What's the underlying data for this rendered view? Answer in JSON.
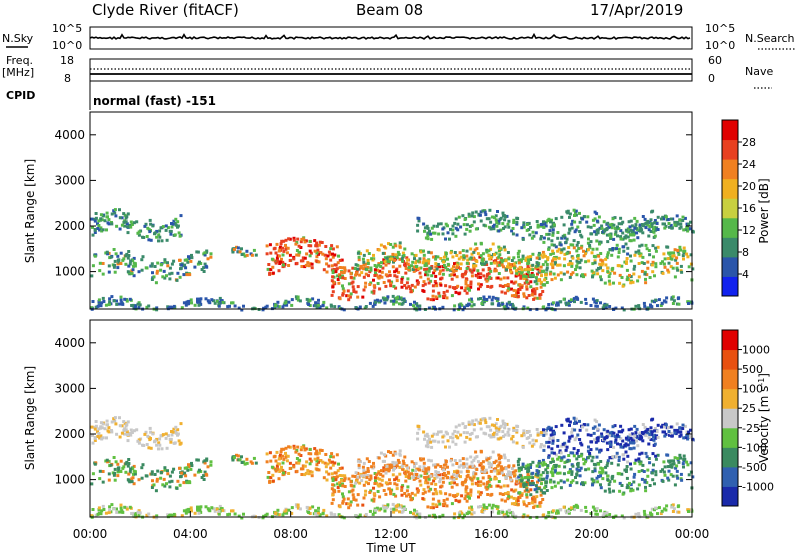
{
  "header": {
    "station": "Clyde River (fitACF)",
    "beam": "Beam 08",
    "date": "17/Apr/2019"
  },
  "top_panels": {
    "nsky_label": "N.Sky",
    "nsky_ticks": [
      "10^5",
      "10^0"
    ],
    "nsearch_label": "N.Search",
    "nsearch_ticks": [
      "10^5",
      "10^0"
    ],
    "freq_label": "Freq.",
    "freq_unit": "[MHz]",
    "freq_ticks": [
      "18",
      "8"
    ],
    "nave_label": "Nave",
    "nave_ticks": [
      "60",
      "0"
    ],
    "cpid_label": "CPID",
    "cpid_text": "normal (fast) -151"
  },
  "chart_data": [
    {
      "type": "heatmap",
      "name": "power",
      "ylabel": "Slant Range [km]",
      "xlabel": "",
      "xlim": [
        0,
        24
      ],
      "ylim": [
        180,
        4500
      ],
      "y_ticks": [
        "1000",
        "2000",
        "3000",
        "4000"
      ],
      "colorbar": {
        "label": "Power [dB]",
        "ticks": [
          "28",
          "24",
          "20",
          "16",
          "12",
          "8",
          "4"
        ],
        "colors": [
          "#1122ee",
          "#2a55aa",
          "#3a8a6a",
          "#55b84a",
          "#c8d040",
          "#f0b020",
          "#f08020",
          "#e84020",
          "#e00000"
        ]
      }
    },
    {
      "type": "heatmap",
      "name": "velocity",
      "ylabel": "Slant Range [km]",
      "xlabel": "Time UT",
      "xlim": [
        0,
        24
      ],
      "ylim": [
        180,
        4500
      ],
      "x_ticks": [
        "00:00",
        "04:00",
        "08:00",
        "12:00",
        "16:00",
        "20:00",
        "00:00"
      ],
      "y_ticks": [
        "1000",
        "2000",
        "3000",
        "4000"
      ],
      "colorbar": {
        "label": "Velocity [m s",
        "label_sup": "-1",
        "label_end": "]",
        "ticks": [
          "1000",
          "500",
          "100",
          "25",
          "-25",
          "-100",
          "-500",
          "-1000"
        ],
        "colors": [
          "#1a2aaa",
          "#3060b0",
          "#3a8a60",
          "#60c040",
          "#c8c8c8",
          "#f0b030",
          "#f08020",
          "#e85010",
          "#e00000"
        ]
      }
    }
  ]
}
